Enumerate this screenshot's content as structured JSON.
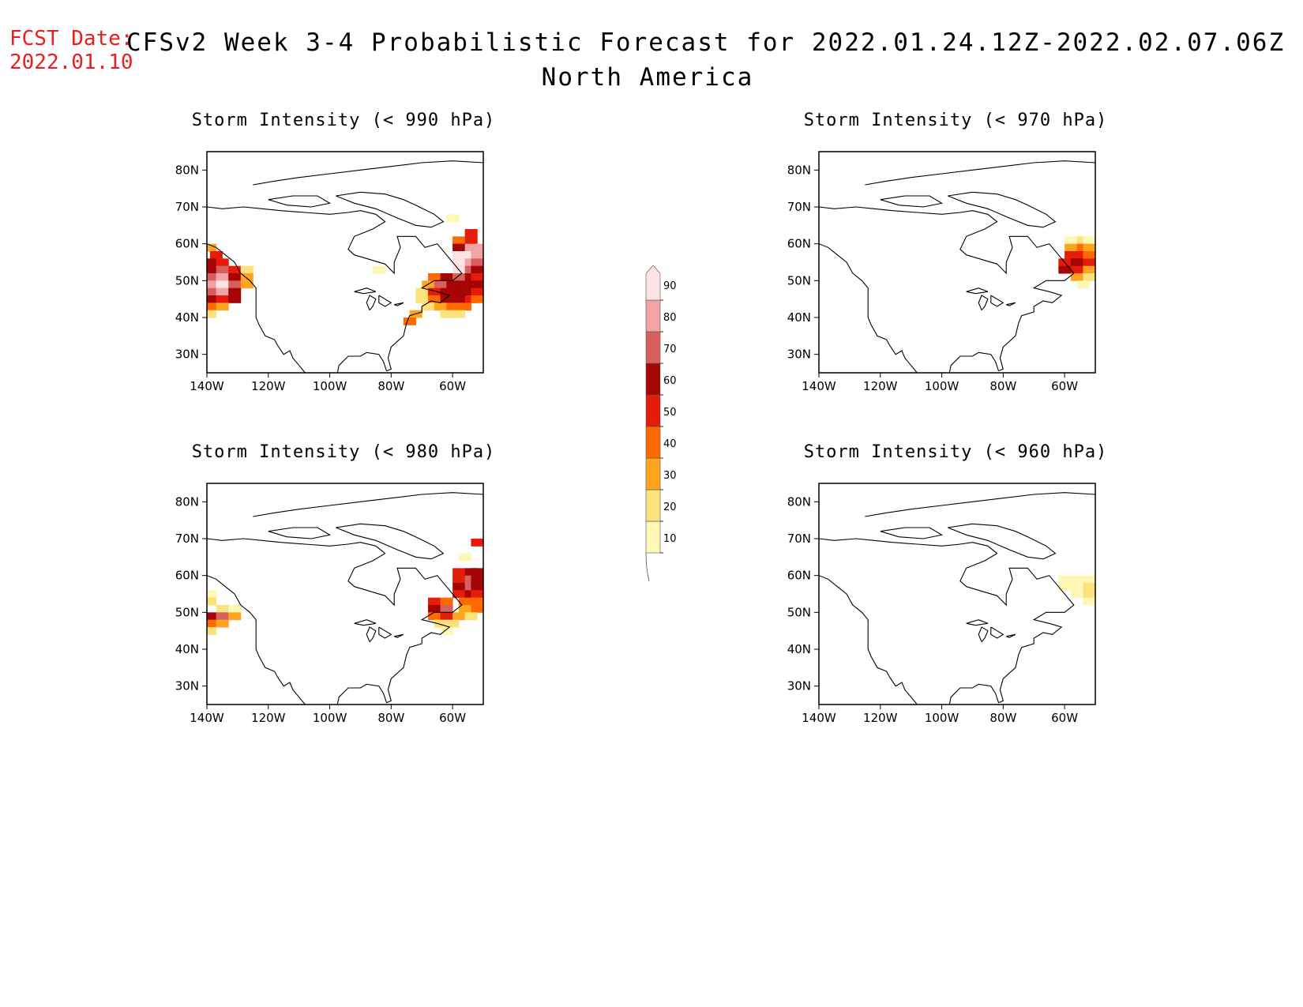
{
  "header": {
    "fcst_label": "FCST Date:",
    "fcst_date": "2022.01.10",
    "title": "CFSv2 Week 3-4 Probabilistic Forecast for 2022.01.24.12Z-2022.02.07.06Z",
    "subtitle": "North America"
  },
  "map": {
    "lat_ticks": [
      "80N",
      "70N",
      "60N",
      "50N",
      "40N",
      "30N"
    ],
    "lat_values": [
      80,
      70,
      60,
      50,
      40,
      30
    ],
    "lon_ticks": [
      "140W",
      "120W",
      "100W",
      "80W",
      "60W"
    ],
    "lon_values": [
      -140,
      -120,
      -100,
      -80,
      -60
    ],
    "lon_range": [
      -140,
      -50
    ],
    "lat_range": [
      25,
      85
    ]
  },
  "legend": {
    "levels": [
      "10",
      "20",
      "30",
      "40",
      "50",
      "60",
      "70",
      "80",
      "90"
    ],
    "colors": [
      "#fff8b4",
      "#fde17a",
      "#fda51e",
      "#ff6a00",
      "#e51c0a",
      "#a50505",
      "#d95f5f",
      "#f2a3a3",
      "#fde3e3"
    ]
  },
  "panels": [
    {
      "id": "p990",
      "title": "Storm Intensity (< 990 hPa)",
      "cells": [
        {
          "lon": -139,
          "lat": 59,
          "p": 30
        },
        {
          "lon": -137,
          "lat": 57,
          "p": 50
        },
        {
          "lon": -139,
          "lat": 55,
          "p": 60
        },
        {
          "lon": -135,
          "lat": 55,
          "p": 50
        },
        {
          "lon": -139,
          "lat": 53,
          "p": 60
        },
        {
          "lon": -135,
          "lat": 53,
          "p": 70
        },
        {
          "lon": -131,
          "lat": 53,
          "p": 50
        },
        {
          "lon": -127,
          "lat": 53,
          "p": 20
        },
        {
          "lon": -139,
          "lat": 51,
          "p": 70
        },
        {
          "lon": -135,
          "lat": 51,
          "p": 80
        },
        {
          "lon": -131,
          "lat": 51,
          "p": 60
        },
        {
          "lon": -127,
          "lat": 51,
          "p": 30
        },
        {
          "lon": -139,
          "lat": 49,
          "p": 80
        },
        {
          "lon": -135,
          "lat": 49,
          "p": 90
        },
        {
          "lon": -131,
          "lat": 49,
          "p": 70
        },
        {
          "lon": -127,
          "lat": 49,
          "p": 30
        },
        {
          "lon": -139,
          "lat": 47,
          "p": 70
        },
        {
          "lon": -135,
          "lat": 47,
          "p": 80
        },
        {
          "lon": -131,
          "lat": 47,
          "p": 60
        },
        {
          "lon": -139,
          "lat": 45,
          "p": 60
        },
        {
          "lon": -135,
          "lat": 45,
          "p": 50
        },
        {
          "lon": -131,
          "lat": 45,
          "p": 60
        },
        {
          "lon": -139,
          "lat": 43,
          "p": 40
        },
        {
          "lon": -135,
          "lat": 43,
          "p": 30
        },
        {
          "lon": -139,
          "lat": 41,
          "p": 20
        },
        {
          "lon": -60,
          "lat": 67,
          "p": 10
        },
        {
          "lon": -54,
          "lat": 63,
          "p": 50
        },
        {
          "lon": -58,
          "lat": 61,
          "p": 40
        },
        {
          "lon": -54,
          "lat": 61,
          "p": 50
        },
        {
          "lon": -58,
          "lat": 59,
          "p": 60
        },
        {
          "lon": -54,
          "lat": 59,
          "p": 80
        },
        {
          "lon": -52,
          "lat": 59,
          "p": 80
        },
        {
          "lon": -58,
          "lat": 57,
          "p": 90
        },
        {
          "lon": -54,
          "lat": 57,
          "p": 90
        },
        {
          "lon": -52,
          "lat": 57,
          "p": 80
        },
        {
          "lon": -58,
          "lat": 55,
          "p": 90
        },
        {
          "lon": -54,
          "lat": 55,
          "p": 80
        },
        {
          "lon": -52,
          "lat": 55,
          "p": 70
        },
        {
          "lon": -58,
          "lat": 53,
          "p": 90
        },
        {
          "lon": -54,
          "lat": 53,
          "p": 70
        },
        {
          "lon": -52,
          "lat": 53,
          "p": 60
        },
        {
          "lon": -66,
          "lat": 51,
          "p": 40
        },
        {
          "lon": -62,
          "lat": 51,
          "p": 60
        },
        {
          "lon": -58,
          "lat": 51,
          "p": 70
        },
        {
          "lon": -54,
          "lat": 51,
          "p": 60
        },
        {
          "lon": -52,
          "lat": 51,
          "p": 50
        },
        {
          "lon": -68,
          "lat": 49,
          "p": 30
        },
        {
          "lon": -64,
          "lat": 49,
          "p": 70
        },
        {
          "lon": -60,
          "lat": 49,
          "p": 60
        },
        {
          "lon": -56,
          "lat": 49,
          "p": 60
        },
        {
          "lon": -52,
          "lat": 49,
          "p": 60
        },
        {
          "lon": -70,
          "lat": 47,
          "p": 20
        },
        {
          "lon": -66,
          "lat": 47,
          "p": 50
        },
        {
          "lon": -62,
          "lat": 47,
          "p": 60
        },
        {
          "lon": -58,
          "lat": 47,
          "p": 60
        },
        {
          "lon": -54,
          "lat": 47,
          "p": 60
        },
        {
          "lon": -52,
          "lat": 47,
          "p": 50
        },
        {
          "lon": -70,
          "lat": 45,
          "p": 20
        },
        {
          "lon": -66,
          "lat": 45,
          "p": 40
        },
        {
          "lon": -62,
          "lat": 45,
          "p": 60
        },
        {
          "lon": -58,
          "lat": 45,
          "p": 60
        },
        {
          "lon": -54,
          "lat": 45,
          "p": 50
        },
        {
          "lon": -52,
          "lat": 45,
          "p": 40
        },
        {
          "lon": -68,
          "lat": 43,
          "p": 20
        },
        {
          "lon": -64,
          "lat": 43,
          "p": 30
        },
        {
          "lon": -60,
          "lat": 43,
          "p": 40
        },
        {
          "lon": -56,
          "lat": 43,
          "p": 40
        },
        {
          "lon": -72,
          "lat": 41,
          "p": 30
        },
        {
          "lon": -62,
          "lat": 41,
          "p": 20
        },
        {
          "lon": -58,
          "lat": 41,
          "p": 20
        },
        {
          "lon": -74,
          "lat": 39,
          "p": 40
        },
        {
          "lon": -84,
          "lat": 53,
          "p": 10
        }
      ]
    },
    {
      "id": "p970",
      "title": "Storm Intensity (< 970 hPa)",
      "cells": [
        {
          "lon": -58,
          "lat": 61,
          "p": 10
        },
        {
          "lon": -54,
          "lat": 61,
          "p": 20
        },
        {
          "lon": -52,
          "lat": 61,
          "p": 10
        },
        {
          "lon": -58,
          "lat": 59,
          "p": 30
        },
        {
          "lon": -54,
          "lat": 59,
          "p": 40
        },
        {
          "lon": -52,
          "lat": 59,
          "p": 30
        },
        {
          "lon": -58,
          "lat": 57,
          "p": 50
        },
        {
          "lon": -54,
          "lat": 57,
          "p": 50
        },
        {
          "lon": -52,
          "lat": 57,
          "p": 40
        },
        {
          "lon": -60,
          "lat": 55,
          "p": 50
        },
        {
          "lon": -56,
          "lat": 55,
          "p": 60
        },
        {
          "lon": -52,
          "lat": 55,
          "p": 50
        },
        {
          "lon": -60,
          "lat": 53,
          "p": 60
        },
        {
          "lon": -56,
          "lat": 53,
          "p": 50
        },
        {
          "lon": -52,
          "lat": 53,
          "p": 30
        },
        {
          "lon": -56,
          "lat": 51,
          "p": 30
        },
        {
          "lon": -52,
          "lat": 51,
          "p": 20
        },
        {
          "lon": -54,
          "lat": 49,
          "p": 10
        }
      ]
    },
    {
      "id": "p980",
      "title": "Storm Intensity (< 980 hPa)",
      "cells": [
        {
          "lon": -139,
          "lat": 55,
          "p": 10
        },
        {
          "lon": -139,
          "lat": 53,
          "p": 20
        },
        {
          "lon": -135,
          "lat": 51,
          "p": 20
        },
        {
          "lon": -131,
          "lat": 51,
          "p": 10
        },
        {
          "lon": -139,
          "lat": 49,
          "p": 60
        },
        {
          "lon": -135,
          "lat": 49,
          "p": 70
        },
        {
          "lon": -131,
          "lat": 49,
          "p": 30
        },
        {
          "lon": -139,
          "lat": 47,
          "p": 40
        },
        {
          "lon": -135,
          "lat": 47,
          "p": 30
        },
        {
          "lon": -139,
          "lat": 45,
          "p": 20
        },
        {
          "lon": -52,
          "lat": 69,
          "p": 50
        },
        {
          "lon": -56,
          "lat": 65,
          "p": 10
        },
        {
          "lon": -58,
          "lat": 61,
          "p": 50
        },
        {
          "lon": -54,
          "lat": 61,
          "p": 60
        },
        {
          "lon": -52,
          "lat": 61,
          "p": 60
        },
        {
          "lon": -58,
          "lat": 59,
          "p": 50
        },
        {
          "lon": -54,
          "lat": 59,
          "p": 70
        },
        {
          "lon": -52,
          "lat": 59,
          "p": 60
        },
        {
          "lon": -58,
          "lat": 57,
          "p": 60
        },
        {
          "lon": -54,
          "lat": 57,
          "p": 70
        },
        {
          "lon": -52,
          "lat": 57,
          "p": 60
        },
        {
          "lon": -58,
          "lat": 55,
          "p": 50
        },
        {
          "lon": -54,
          "lat": 55,
          "p": 60
        },
        {
          "lon": -52,
          "lat": 55,
          "p": 50
        },
        {
          "lon": -66,
          "lat": 53,
          "p": 50
        },
        {
          "lon": -62,
          "lat": 53,
          "p": 40
        },
        {
          "lon": -56,
          "lat": 53,
          "p": 40
        },
        {
          "lon": -52,
          "lat": 53,
          "p": 40
        },
        {
          "lon": -66,
          "lat": 51,
          "p": 60
        },
        {
          "lon": -62,
          "lat": 51,
          "p": 70
        },
        {
          "lon": -56,
          "lat": 51,
          "p": 30
        },
        {
          "lon": -52,
          "lat": 51,
          "p": 40
        },
        {
          "lon": -66,
          "lat": 49,
          "p": 40
        },
        {
          "lon": -62,
          "lat": 49,
          "p": 50
        },
        {
          "lon": -58,
          "lat": 49,
          "p": 30
        },
        {
          "lon": -54,
          "lat": 49,
          "p": 20
        },
        {
          "lon": -64,
          "lat": 47,
          "p": 20
        },
        {
          "lon": -60,
          "lat": 47,
          "p": 20
        },
        {
          "lon": -62,
          "lat": 45,
          "p": 10
        }
      ]
    },
    {
      "id": "p960",
      "title": "Storm Intensity (< 960 hPa)",
      "cells": [
        {
          "lon": -60,
          "lat": 59,
          "p": 10
        },
        {
          "lon": -56,
          "lat": 59,
          "p": 10
        },
        {
          "lon": -52,
          "lat": 59,
          "p": 10
        },
        {
          "lon": -60,
          "lat": 57,
          "p": 10
        },
        {
          "lon": -56,
          "lat": 57,
          "p": 10
        },
        {
          "lon": -52,
          "lat": 57,
          "p": 20
        },
        {
          "lon": -56,
          "lat": 55,
          "p": 10
        },
        {
          "lon": -52,
          "lat": 55,
          "p": 20
        },
        {
          "lon": -52,
          "lat": 53,
          "p": 10
        }
      ]
    }
  ]
}
